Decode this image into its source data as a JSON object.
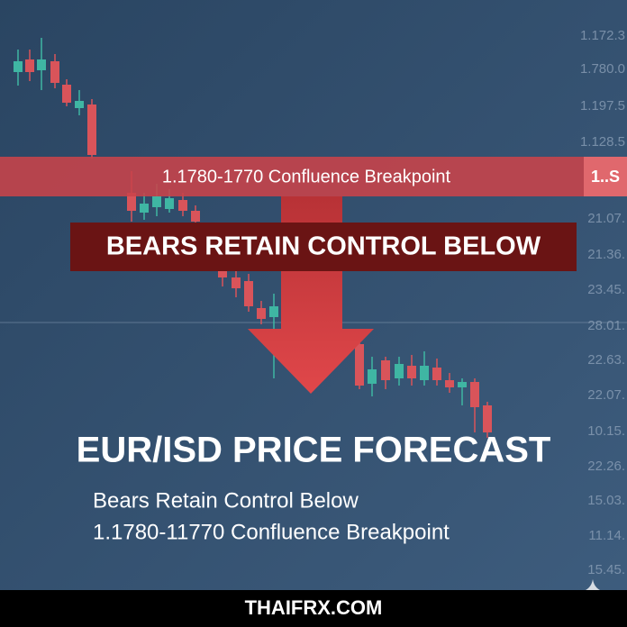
{
  "axis_labels": [
    "1.172.3",
    "1.780.0",
    "1.197.5",
    "1.128.5",
    "21.07.",
    "21.36.",
    "23.45.",
    "28.01.",
    "22.63.",
    "22.07.",
    "10.15.",
    "22.26.",
    "15.03.",
    "11.14.",
    "15.45."
  ],
  "banner": {
    "text": "1.1780-1770 Confluence Breakpoint",
    "side": "1..S"
  },
  "headline": "BEARS RETAIN CONTROL BELOW",
  "title": "EUR/ISD PRICE FORECAST",
  "subtitle": [
    "Bears Retain Control Below",
    "1.1780-11770 Confluence Breakpoint"
  ],
  "footer": "THAIFRX.COM"
}
